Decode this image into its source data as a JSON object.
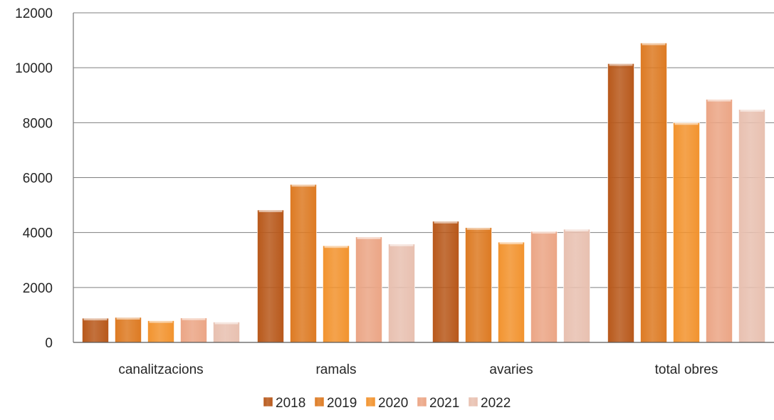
{
  "chart_data": {
    "type": "bar",
    "categories": [
      "canalitzacions",
      "ramals",
      "avaries",
      "total obres"
    ],
    "series": [
      {
        "name": "2018",
        "values": [
          880,
          4820,
          4410,
          10150
        ],
        "color": "#b8581a"
      },
      {
        "name": "2019",
        "values": [
          910,
          5750,
          4180,
          10900
        ],
        "color": "#dd7a22"
      },
      {
        "name": "2020",
        "values": [
          790,
          3520,
          3650,
          8000
        ],
        "color": "#f2932e"
      },
      {
        "name": "2021",
        "values": [
          890,
          3840,
          4040,
          8850
        ],
        "color": "#eba585"
      },
      {
        "name": "2022",
        "values": [
          740,
          3580,
          4120,
          8480
        ],
        "color": "#e8c0b0"
      }
    ],
    "ylim": [
      0,
      12000
    ],
    "yticks": [
      "0",
      "2000",
      "4000",
      "6000",
      "8000",
      "10000",
      "12000"
    ],
    "grid": true,
    "legend_position": "bottom"
  }
}
